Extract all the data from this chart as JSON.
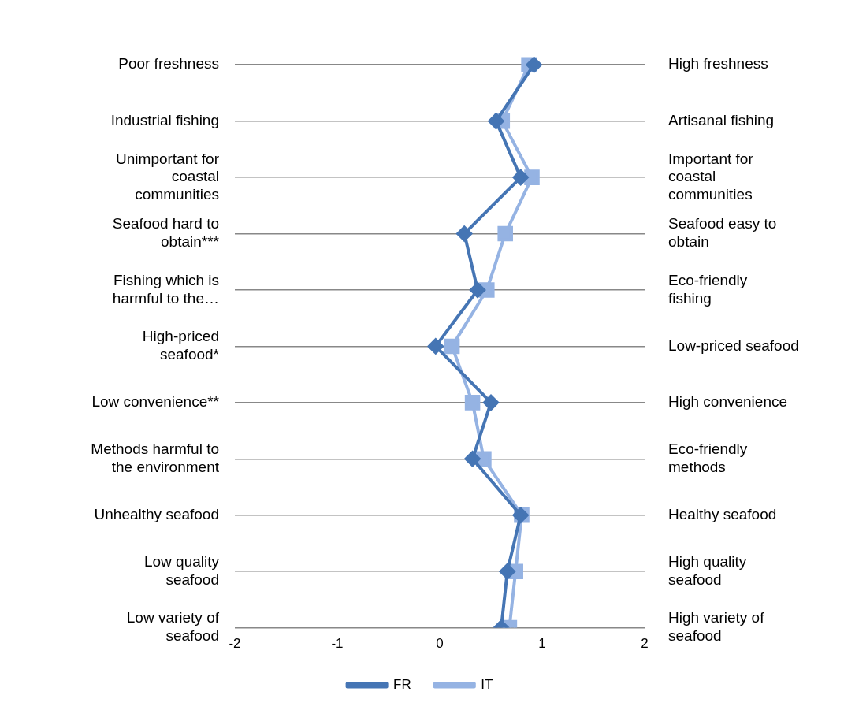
{
  "chart_data": {
    "type": "line",
    "orientation": "horizontal",
    "categories": [
      "Poor freshness",
      "Industrial fishing",
      "Unimportant for coastal communities",
      "Seafood hard to obtain***",
      "Fishing which is harmful to the…",
      "High-priced seafood*",
      "Low convenience**",
      "Methods harmful to the environment",
      "Unhealthy seafood",
      "Low quality seafood",
      "Low variety of seafood"
    ],
    "y2_categories": [
      "High freshness",
      "Artisanal fishing",
      "Important for coastal communities",
      "Seafood easy to obtain",
      "Eco-friendly fishing",
      "Low-priced seafood",
      "High convenience",
      "Eco-friendly methods",
      "Healthy seafood",
      "High quality seafood",
      "High variety of seafood"
    ],
    "series": [
      {
        "name": "FR",
        "color": "#4575b4",
        "marker": "diamond",
        "values": [
          0.92,
          0.55,
          0.79,
          0.24,
          0.37,
          -0.04,
          0.5,
          0.32,
          0.79,
          0.66,
          0.6
        ]
      },
      {
        "name": "IT",
        "color": "#95b3e3",
        "marker": "square",
        "values": [
          0.87,
          0.61,
          0.9,
          0.64,
          0.46,
          0.12,
          0.32,
          0.43,
          0.8,
          0.74,
          0.68
        ]
      }
    ],
    "xlim": [
      -2,
      2
    ],
    "xticks": [
      -2,
      -1,
      0,
      1,
      2
    ],
    "grid": "y",
    "legend": "bottom"
  }
}
